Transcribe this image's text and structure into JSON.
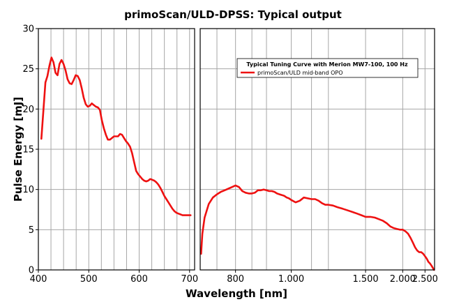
{
  "chart_data": {
    "type": "line",
    "title": "primoScan/ULD-DPSS: Typical output",
    "xlabel": "Wavelength [nm]",
    "ylabel": "Pulse Energy [mJ]",
    "ylim": [
      0,
      30
    ],
    "yticks": [
      0,
      5,
      10,
      15,
      20,
      25,
      30
    ],
    "grid": true,
    "series_color": "#ee1111",
    "legend": {
      "title": "Typical Tuning Curve with Merion MW7-100, 100 Hz",
      "entries": [
        "primoScan/ULD mid-band OPO"
      ],
      "placement": "top-right"
    },
    "panels": [
      {
        "name": "signal",
        "scale": "linear",
        "xlim": [
          400,
          710
        ],
        "xticks": [
          400,
          500,
          600,
          700
        ],
        "xtick_labels": [
          "400",
          "500",
          "600",
          "700"
        ],
        "xgrid": [
          400,
          425,
          450,
          475,
          500,
          525,
          550,
          575,
          600,
          625,
          650,
          675,
          700
        ],
        "series": [
          {
            "name": "primoScan/ULD mid-band OPO",
            "x": [
              406,
              410,
              414,
              418,
              422,
              426,
              430,
              434,
              438,
              442,
              446,
              450,
              454,
              458,
              462,
              466,
              470,
              474,
              478,
              482,
              486,
              490,
              494,
              498,
              502,
              506,
              510,
              514,
              518,
              522,
              526,
              530,
              534,
              538,
              542,
              546,
              550,
              554,
              558,
              562,
              566,
              570,
              574,
              578,
              582,
              586,
              590,
              594,
              598,
              602,
              606,
              610,
              614,
              618,
              622,
              626,
              630,
              634,
              638,
              642,
              646,
              650,
              654,
              658,
              662,
              666,
              670,
              674,
              678,
              682,
              686,
              690,
              694,
              698,
              702
            ],
            "y": [
              16.3,
              19.8,
              23.3,
              24.1,
              25.4,
              26.4,
              25.8,
              24.5,
              24.2,
              25.6,
              26.1,
              25.6,
              24.8,
              23.7,
              23.2,
              23.1,
              23.6,
              24.2,
              24.1,
              23.6,
              22.6,
              21.4,
              20.6,
              20.3,
              20.4,
              20.7,
              20.5,
              20.3,
              20.2,
              19.9,
              18.6,
              17.6,
              16.8,
              16.2,
              16.2,
              16.4,
              16.6,
              16.6,
              16.6,
              16.9,
              16.8,
              16.4,
              16.0,
              15.7,
              15.3,
              14.5,
              13.4,
              12.3,
              11.9,
              11.6,
              11.3,
              11.1,
              11.0,
              11.1,
              11.3,
              11.2,
              11.1,
              10.9,
              10.6,
              10.2,
              9.7,
              9.2,
              8.8,
              8.4,
              8.0,
              7.6,
              7.3,
              7.1,
              7.0,
              6.9,
              6.8,
              6.8,
              6.8,
              6.8,
              6.8
            ]
          }
        ]
      },
      {
        "name": "idler",
        "scale": "reciprocal",
        "xlim": [
          710,
          2800
        ],
        "xticks": [
          800,
          1000,
          1500,
          2000,
          2500
        ],
        "xtick_labels": [
          "800",
          "1.000",
          "1.500",
          "2.000",
          "2.500"
        ],
        "xgrid": [
          750,
          800,
          850,
          900,
          1000,
          1100,
          1200,
          1500,
          2000,
          2500
        ],
        "series": [
          {
            "name": "primoScan/ULD mid-band OPO",
            "x": [
              712,
              715,
              720,
              730,
              740,
              750,
              760,
              770,
              780,
              790,
              800,
              810,
              820,
              830,
              840,
              850,
              860,
              870,
              880,
              890,
              900,
              910,
              920,
              930,
              940,
              950,
              960,
              970,
              980,
              990,
              1000,
              1020,
              1040,
              1060,
              1080,
              1100,
              1120,
              1140,
              1160,
              1180,
              1200,
              1230,
              1260,
              1300,
              1340,
              1380,
              1420,
              1460,
              1500,
              1550,
              1600,
              1650,
              1700,
              1750,
              1800,
              1850,
              1900,
              1950,
              2000,
              2050,
              2100,
              2150,
              2200,
              2250,
              2300,
              2350,
              2400,
              2450,
              2500,
              2550,
              2600,
              2650,
              2700,
              2750,
              2780
            ],
            "y": [
              2.0,
              4.5,
              6.5,
              8.2,
              9.0,
              9.4,
              9.7,
              9.9,
              10.1,
              10.3,
              10.5,
              10.3,
              9.8,
              9.6,
              9.5,
              9.5,
              9.6,
              9.9,
              9.9,
              10.0,
              9.9,
              9.8,
              9.8,
              9.7,
              9.5,
              9.4,
              9.3,
              9.2,
              9.0,
              8.9,
              8.7,
              8.4,
              8.6,
              9.0,
              8.9,
              8.8,
              8.8,
              8.6,
              8.3,
              8.1,
              8.1,
              8.0,
              7.8,
              7.6,
              7.4,
              7.2,
              7.0,
              6.8,
              6.6,
              6.6,
              6.5,
              6.3,
              6.1,
              5.8,
              5.4,
              5.2,
              5.1,
              5.0,
              5.0,
              4.8,
              4.5,
              4.0,
              3.4,
              2.8,
              2.4,
              2.2,
              2.2,
              2.0,
              1.7,
              1.4,
              1.0,
              0.8,
              0.5,
              0.2,
              0.0
            ]
          }
        ]
      }
    ]
  }
}
